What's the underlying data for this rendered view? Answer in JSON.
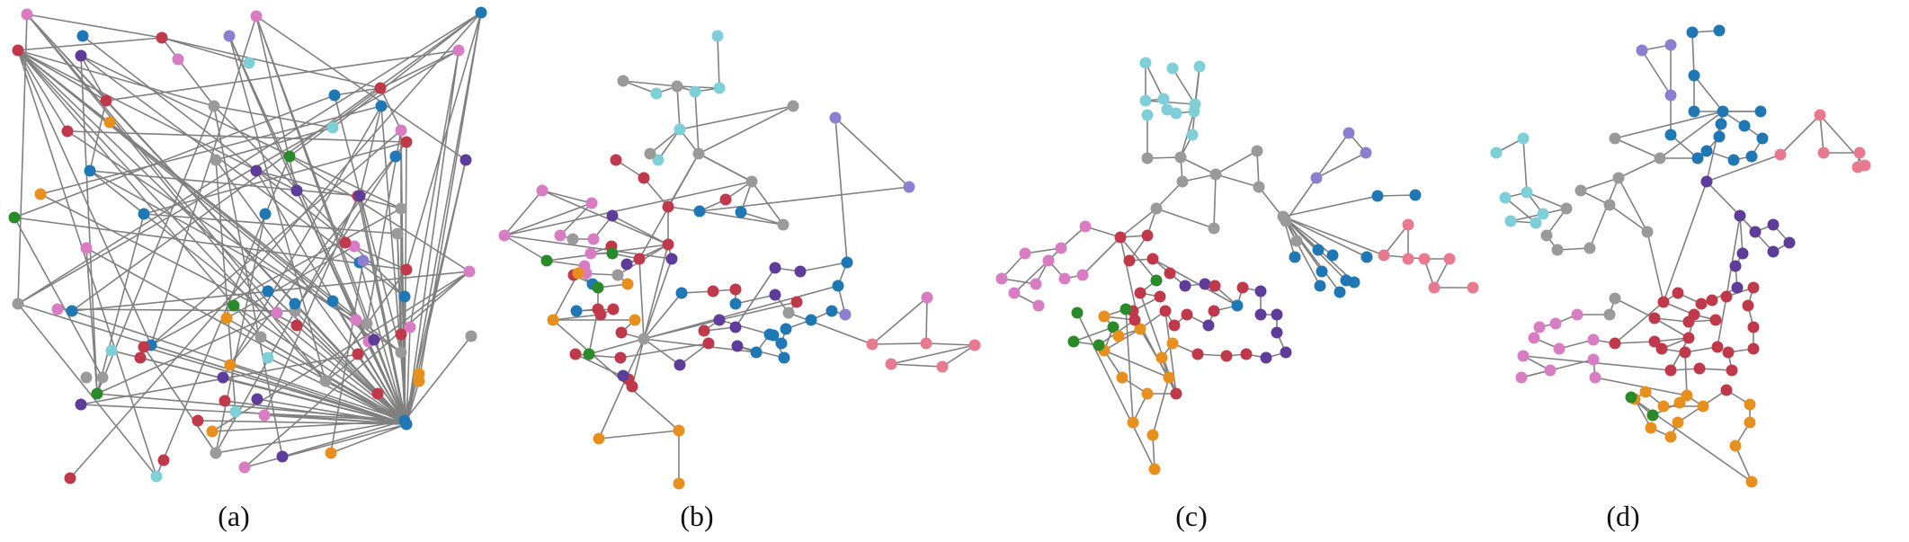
{
  "palette": {
    "edge": "#808080",
    "red": "#c0394b",
    "blue": "#1f77b4",
    "purple": "#5e3c99",
    "pink": "#d87cc4",
    "green": "#2a8a2a",
    "orange": "#e8901e",
    "cyan": "#7fcfd8",
    "gray": "#9a9a9a",
    "salmon": "#e87a8f",
    "lavender": "#8c7fd0"
  },
  "panels": [
    {
      "id": "a",
      "caption": "(a)"
    },
    {
      "id": "b",
      "caption": "(b)"
    },
    {
      "id": "c",
      "caption": "(c)"
    },
    {
      "id": "d",
      "caption": "(d)"
    }
  ]
}
